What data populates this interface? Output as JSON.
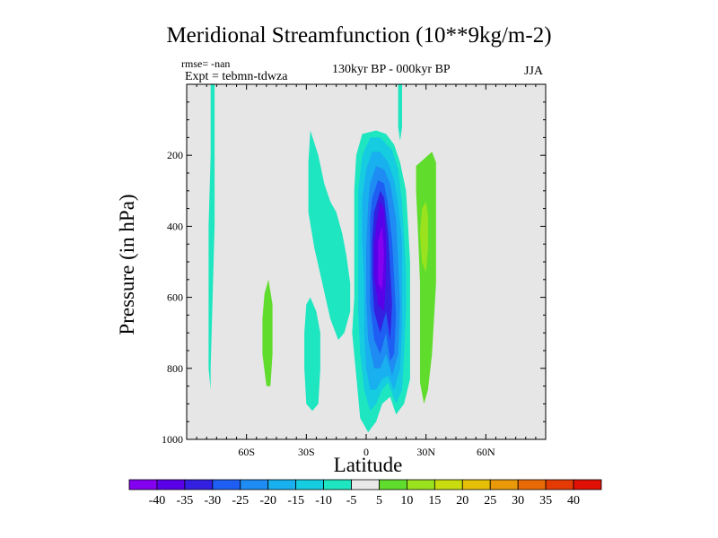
{
  "chart_data": {
    "type": "contour",
    "title": "Meridional Streamfunction (10**9kg/m-2)",
    "annotations": {
      "rmse": "rmse= -nan",
      "experiment": "Expt = tebmn-tdwza",
      "period": "130kyr BP - 000kyr BP",
      "season": "JJA"
    },
    "xlabel": "Latitude",
    "ylabel": "Pressure (in hPa)",
    "xlim": [
      -90,
      90
    ],
    "ylim": [
      1000,
      0
    ],
    "x_ticks": [
      {
        "value": -60,
        "label": "60S"
      },
      {
        "value": -30,
        "label": "30S"
      },
      {
        "value": 0,
        "label": "0"
      },
      {
        "value": 30,
        "label": "30N"
      },
      {
        "value": 60,
        "label": "60N"
      }
    ],
    "y_ticks": [
      {
        "value": 200,
        "label": "200"
      },
      {
        "value": 400,
        "label": "400"
      },
      {
        "value": 600,
        "label": "600"
      },
      {
        "value": 800,
        "label": "800"
      },
      {
        "value": 1000,
        "label": "1000"
      }
    ],
    "colorbar": {
      "labels": [
        "-40",
        "-35",
        "-30",
        "-25",
        "-20",
        "-15",
        "-10",
        "-5",
        "5",
        "10",
        "15",
        "20",
        "25",
        "30",
        "35",
        "40"
      ],
      "colors": [
        "#8400f0",
        "#5a00e8",
        "#3320e0",
        "#1f5ef2",
        "#1e8cf2",
        "#18b0ee",
        "#16cce0",
        "#1ee6c0",
        "#e8e8e8",
        "#60dc2c",
        "#9ae21e",
        "#c8dc10",
        "#e6c008",
        "#ea9a08",
        "#e86a06",
        "#e43a04",
        "#e01004"
      ]
    },
    "background_color": "#e6e6e6",
    "regions": [
      {
        "level": "-5",
        "color": "#1ee6c0",
        "points": [
          [
            -78,
            0
          ],
          [
            -76,
            0
          ],
          [
            -76,
            200
          ],
          [
            -76,
            400
          ],
          [
            -77,
            600
          ],
          [
            -78,
            800
          ],
          [
            -78,
            860
          ],
          [
            -79,
            800
          ],
          [
            -79,
            600
          ],
          [
            -79,
            400
          ],
          [
            -78,
            200
          ]
        ]
      },
      {
        "level": "5",
        "color": "#60dc2c",
        "points": [
          [
            -51,
            590
          ],
          [
            -49,
            550
          ],
          [
            -47,
            620
          ],
          [
            -47,
            760
          ],
          [
            -48,
            850
          ],
          [
            -50,
            850
          ],
          [
            -52,
            760
          ],
          [
            -52,
            660
          ]
        ]
      },
      {
        "level": "-5",
        "color": "#1ee6c0",
        "points": [
          [
            -30,
            620
          ],
          [
            -28,
            600
          ],
          [
            -25,
            640
          ],
          [
            -23,
            700
          ],
          [
            -23,
            800
          ],
          [
            -24,
            900
          ],
          [
            -27,
            920
          ],
          [
            -30,
            900
          ],
          [
            -31,
            800
          ],
          [
            -31,
            700
          ]
        ]
      },
      {
        "level": "-5",
        "color": "#1ee6c0",
        "points": [
          [
            -28,
            130
          ],
          [
            -24,
            200
          ],
          [
            -21,
            280
          ],
          [
            -18,
            330
          ],
          [
            -15,
            360
          ],
          [
            -12,
            420
          ],
          [
            -10,
            480
          ],
          [
            -8,
            560
          ],
          [
            -8,
            640
          ],
          [
            -11,
            700
          ],
          [
            -14,
            720
          ],
          [
            -18,
            660
          ],
          [
            -22,
            560
          ],
          [
            -26,
            460
          ],
          [
            -29,
            360
          ],
          [
            -29,
            220
          ]
        ]
      },
      {
        "level": "-5",
        "color": "#1ee6c0",
        "points": [
          [
            -5,
            200
          ],
          [
            -2,
            140
          ],
          [
            5,
            130
          ],
          [
            10,
            140
          ],
          [
            14,
            170
          ],
          [
            17,
            220
          ],
          [
            20,
            300
          ],
          [
            21,
            400
          ],
          [
            22,
            500
          ],
          [
            22,
            600
          ],
          [
            22,
            700
          ],
          [
            22,
            830
          ],
          [
            19,
            900
          ],
          [
            15,
            930
          ],
          [
            12,
            880
          ],
          [
            8,
            900
          ],
          [
            5,
            950
          ],
          [
            1,
            980
          ],
          [
            -3,
            940
          ],
          [
            -5,
            820
          ],
          [
            -7,
            700
          ],
          [
            -6,
            600
          ],
          [
            -6,
            500
          ],
          [
            -6,
            400
          ],
          [
            -6,
            300
          ]
        ]
      },
      {
        "level": "-5",
        "color": "#1ee6c0",
        "points": [
          [
            16,
            0
          ],
          [
            18,
            0
          ],
          [
            18,
            120
          ],
          [
            17,
            160
          ],
          [
            16,
            120
          ]
        ]
      },
      {
        "level": "-10",
        "color": "#16cce0",
        "points": [
          [
            -2,
            200
          ],
          [
            2,
            150
          ],
          [
            7,
            150
          ],
          [
            13,
            185
          ],
          [
            16,
            240
          ],
          [
            18,
            330
          ],
          [
            19,
            430
          ],
          [
            20,
            530
          ],
          [
            20,
            630
          ],
          [
            19,
            760
          ],
          [
            18,
            860
          ],
          [
            15,
            900
          ],
          [
            11,
            840
          ],
          [
            8,
            860
          ],
          [
            5,
            900
          ],
          [
            2,
            920
          ],
          [
            -1,
            860
          ],
          [
            -3,
            760
          ],
          [
            -4,
            640
          ],
          [
            -4,
            520
          ],
          [
            -4,
            420
          ],
          [
            -4,
            300
          ]
        ]
      },
      {
        "level": "-15",
        "color": "#18b0ee",
        "points": [
          [
            0,
            240
          ],
          [
            3,
            190
          ],
          [
            7,
            190
          ],
          [
            11,
            220
          ],
          [
            14,
            270
          ],
          [
            16,
            340
          ],
          [
            18,
            440
          ],
          [
            18,
            560
          ],
          [
            18,
            680
          ],
          [
            17,
            800
          ],
          [
            14,
            860
          ],
          [
            11,
            820
          ],
          [
            8,
            830
          ],
          [
            5,
            860
          ],
          [
            2,
            860
          ],
          [
            0,
            800
          ],
          [
            -1,
            700
          ],
          [
            -1,
            560
          ],
          [
            -2,
            440
          ],
          [
            -2,
            320
          ]
        ]
      },
      {
        "level": "-20",
        "color": "#1e8cf2",
        "points": [
          [
            2,
            280
          ],
          [
            5,
            230
          ],
          [
            9,
            240
          ],
          [
            12,
            280
          ],
          [
            15,
            380
          ],
          [
            16,
            500
          ],
          [
            17,
            620
          ],
          [
            16,
            760
          ],
          [
            13,
            820
          ],
          [
            10,
            760
          ],
          [
            7,
            800
          ],
          [
            4,
            800
          ],
          [
            1,
            720
          ],
          [
            0,
            600
          ],
          [
            0,
            460
          ],
          [
            1,
            340
          ]
        ]
      },
      {
        "level": "-25",
        "color": "#1f5ef2",
        "points": [
          [
            3,
            320
          ],
          [
            6,
            270
          ],
          [
            9,
            280
          ],
          [
            11,
            340
          ],
          [
            13,
            440
          ],
          [
            14,
            540
          ],
          [
            15,
            650
          ],
          [
            14,
            760
          ],
          [
            12,
            780
          ],
          [
            10,
            700
          ],
          [
            7,
            760
          ],
          [
            4,
            720
          ],
          [
            2,
            620
          ],
          [
            2,
            480
          ],
          [
            2,
            380
          ]
        ]
      },
      {
        "level": "-30",
        "color": "#3320e0",
        "points": [
          [
            4,
            360
          ],
          [
            7,
            300
          ],
          [
            9,
            320
          ],
          [
            11,
            420
          ],
          [
            12,
            520
          ],
          [
            13,
            620
          ],
          [
            12,
            720
          ],
          [
            10,
            640
          ],
          [
            7,
            700
          ],
          [
            4,
            640
          ],
          [
            3,
            540
          ],
          [
            3,
            440
          ]
        ]
      },
      {
        "level": "-35",
        "color": "#5a00e8",
        "points": [
          [
            5,
            400
          ],
          [
            7,
            330
          ],
          [
            9,
            350
          ],
          [
            10,
            450
          ],
          [
            10,
            550
          ],
          [
            9,
            640
          ],
          [
            6,
            620
          ],
          [
            4,
            540
          ],
          [
            4,
            460
          ]
        ]
      },
      {
        "level": "-40",
        "color": "#8400f0",
        "points": [
          [
            6,
            440
          ],
          [
            8,
            400
          ],
          [
            9,
            480
          ],
          [
            8,
            580
          ],
          [
            6,
            560
          ]
        ]
      },
      {
        "level": "5",
        "color": "#60dc2c",
        "points": [
          [
            25,
            230
          ],
          [
            29,
            210
          ],
          [
            33,
            190
          ],
          [
            35,
            220
          ],
          [
            35,
            340
          ],
          [
            35,
            460
          ],
          [
            35,
            560
          ],
          [
            34,
            660
          ],
          [
            33,
            760
          ],
          [
            31,
            860
          ],
          [
            29,
            900
          ],
          [
            27,
            840
          ],
          [
            27,
            700
          ],
          [
            27,
            560
          ],
          [
            26,
            420
          ],
          [
            25,
            300
          ]
        ]
      },
      {
        "level": "10",
        "color": "#9ae21e",
        "points": [
          [
            28,
            350
          ],
          [
            30,
            330
          ],
          [
            31,
            370
          ],
          [
            31,
            460
          ],
          [
            30,
            530
          ],
          [
            28,
            500
          ],
          [
            27,
            420
          ]
        ]
      }
    ]
  }
}
